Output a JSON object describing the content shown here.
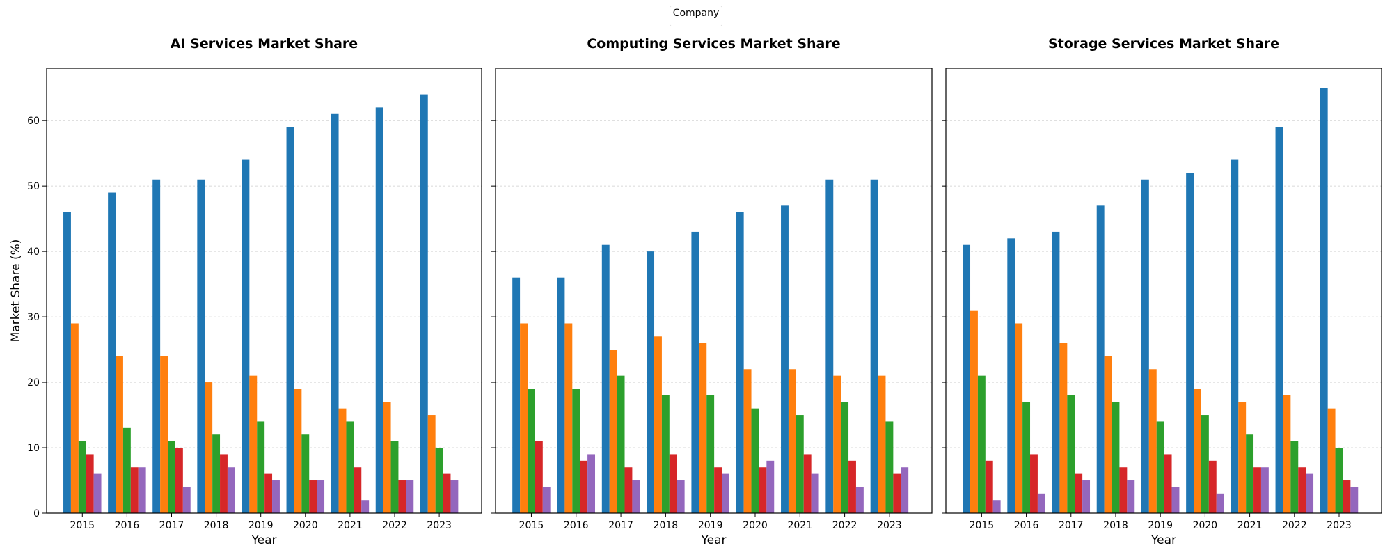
{
  "legend": {
    "title": "Company",
    "placement": "top-center"
  },
  "colors": [
    "#1f77b4",
    "#ff7f0e",
    "#2ca02c",
    "#d62728",
    "#9467bd"
  ],
  "shared": {
    "ylabel": "Market Share (%)",
    "xlabel": "Year",
    "ylim": [
      0,
      68
    ],
    "yticks": [
      0,
      10,
      20,
      30,
      40,
      50,
      60
    ],
    "grid": "y-dashed"
  },
  "chart_data": [
    {
      "type": "bar",
      "title": "AI Services Market Share",
      "xlabel": "Year",
      "ylabel": "Market Share (%)",
      "categories": [
        "2015",
        "2016",
        "2017",
        "2018",
        "2019",
        "2020",
        "2021",
        "2022",
        "2023"
      ],
      "ylim": [
        0,
        68
      ],
      "series": [
        {
          "values": [
            46,
            49,
            51,
            51,
            54,
            59,
            61,
            62,
            64
          ]
        },
        {
          "values": [
            29,
            24,
            24,
            20,
            21,
            19,
            16,
            17,
            15
          ]
        },
        {
          "values": [
            11,
            13,
            11,
            12,
            14,
            12,
            14,
            11,
            10
          ]
        },
        {
          "values": [
            9,
            7,
            10,
            9,
            6,
            5,
            7,
            5,
            6
          ]
        },
        {
          "values": [
            6,
            7,
            4,
            7,
            5,
            5,
            2,
            5,
            5
          ]
        }
      ]
    },
    {
      "type": "bar",
      "title": "Computing Services Market Share",
      "xlabel": "Year",
      "ylabel": "",
      "categories": [
        "2015",
        "2016",
        "2017",
        "2018",
        "2019",
        "2020",
        "2021",
        "2022",
        "2023"
      ],
      "ylim": [
        0,
        68
      ],
      "series": [
        {
          "values": [
            36,
            36,
            41,
            40,
            43,
            46,
            47,
            51,
            51
          ]
        },
        {
          "values": [
            29,
            29,
            25,
            27,
            26,
            22,
            22,
            21,
            21
          ]
        },
        {
          "values": [
            19,
            19,
            21,
            18,
            18,
            16,
            15,
            17,
            14
          ]
        },
        {
          "values": [
            11,
            8,
            7,
            9,
            7,
            7,
            9,
            8,
            6
          ]
        },
        {
          "values": [
            4,
            9,
            5,
            5,
            6,
            8,
            6,
            4,
            7
          ]
        }
      ]
    },
    {
      "type": "bar",
      "title": "Storage Services Market Share",
      "xlabel": "Year",
      "ylabel": "",
      "categories": [
        "2015",
        "2016",
        "2017",
        "2018",
        "2019",
        "2020",
        "2021",
        "2022",
        "2023"
      ],
      "ylim": [
        0,
        68
      ],
      "series": [
        {
          "values": [
            41,
            42,
            43,
            47,
            51,
            52,
            54,
            59,
            65
          ]
        },
        {
          "values": [
            31,
            29,
            26,
            24,
            22,
            19,
            17,
            18,
            16
          ]
        },
        {
          "values": [
            21,
            17,
            18,
            17,
            14,
            15,
            12,
            11,
            10
          ]
        },
        {
          "values": [
            8,
            9,
            6,
            7,
            9,
            8,
            7,
            7,
            5
          ]
        },
        {
          "values": [
            2,
            3,
            5,
            5,
            4,
            3,
            7,
            6,
            4
          ]
        }
      ]
    }
  ]
}
